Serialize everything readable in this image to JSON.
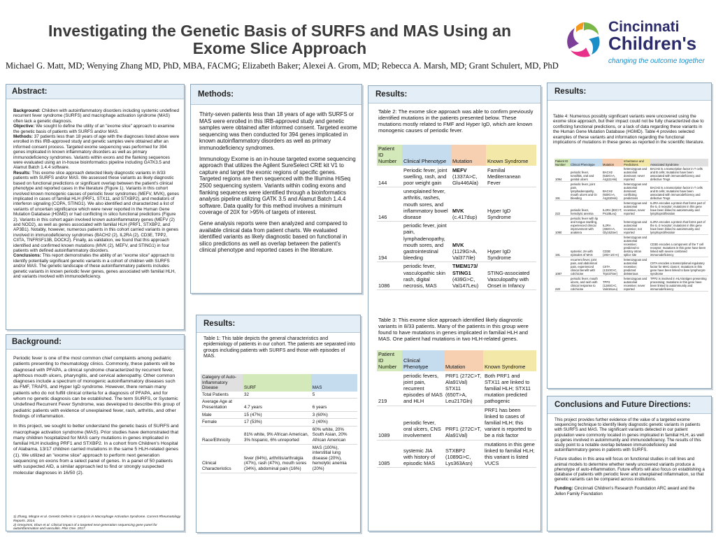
{
  "title": "Investigating the Genetic Basis of SURFS and MAS Using an Exome Slice Approach",
  "authors": "Michael G. Matt, MD; Wenying Zhang MD, PhD, MBA, FACMG; Elizabeth Baker; Alexei A. Grom, MD; Rebecca A. Marsh, MD; Grant Schulert, MD, PhD",
  "logo": {
    "line1": "Cincinnati",
    "line2": "Children's",
    "tagline": "changing the outcome together"
  },
  "abstract": {
    "heading": "Abstract:",
    "background_label": "Background:",
    "background": "Children with autoinflammatory disorders including systemic undefined recurrent fever syndrome (SURFS) and macrophage activation syndrome (MAS) often lack a genetic diagnosis.",
    "objective_label": "Objective:",
    "objective": "We sought to define the utility of an \"exome slice\" approach to examine the genetic basis of patients with SURFS and/or MAS.",
    "methods_label": "Methods:",
    "methods": "37 patients less than 18 years of age with the diagnoses listed above were enrolled in this IRB-approved study and genetic samples were obtained after an informed consent process. Targeted exome sequencing was performed for 394 genes implicated in known inflammatory disorders as well as primary immunodeficiency syndromes. Variants within exons and the flanking sequences were evaluated using an in-house bioinformatics pipeline including GATK3.5 and Alamut Batch 1.4.4 software.",
    "results_label": "Results:",
    "results": "This exome slice approach detected likely diagnostic variants in 8/33 patients with SURFS and/or MAS. We assessed these variants as likely diagnostic based on functional predictions or significant overlap between the patient's clinical phenotype and reported cases in the literature (Figure 1). Variants in this cohort involved known monogenic causes of periodic fever syndromes (MEFV, MVK), genes implicated in cases of familial HLH (PRF1, STX11, and STXBP2), and mediators of interferon signaling (COPA, STING1). We also identified and characterized a list of variants of uncertain significance which were never reported in the Human Gene Mutation Database (HGMD) or had conflicting in silico functional predictions (Figure 2). Variants in this cohort again involved known autoinflammatory genes (MEFV (2) and NOD2), as well as genes associated with familial HLH (PRF1, STXBP2, and AP3B1). Notably, however, numerous patients in this cohort carried variants in genes involved in immunodeficiency syndromes (BACH2 (2), IL2RA (2), CD3E, TPP2, CIITA, TNFRSF13B, DOCK2). Finally, as validation, we found that this approach identified and confirmed known mutations (MVK (2), MEFV, and STING1) in four patients with defined autoinflammatory disorders.",
    "conclusions_label": "Conclusions:",
    "conclusions": "This report demonstrates the ability of an \"exome slice\" approach to identify potentially significant genetic variants in a cohort of children with SURFS and/or MAS. The genetic landscape of these autoinflammatory patients includes genetic variants in known periodic fever genes, genes associated with familial HLH, and variants involved with immunodeficiency."
  },
  "background": {
    "heading": "Background:",
    "p1": "Periodic fever is one of the most common chief complaints among pediatric patients presenting to rheumatology clinics. Commonly, these patients will be diagnosed with PFAPA, a clinical syndrome characterized by recurrent fever, aphthous mouth ulcers, pharyngitis, and cervical adenopathy. Other common diagnoses include a spectrum of monogenic autoinflammatory diseases such as FMF, TRAPS, and Hyper IgD syndrome. However, there remain many patients who do not fulfill clinical criteria for a diagnosis of PFAPA, and for whom no genetic diagnosis can be established. The term SURFS, or Systemic Undefined Recurrent Fever Syndrome, was developed to describe this group of pediatric patients with evidence of unexplained fever, rash, arthritis, and other findings of inflammation.",
    "p2": "In this project, we sought to better understand the genetic basis of SURFS and macrophage activation syndrome (MAS). Prior studies have demonstrated that many children hospitalized for MAS carry mutations in genes implicated in familial HLH including PRF1 and STXBP2. In a cohort from Children's Hospital of Alabama, 13/17 children carried mutations in the same 5 HLH-related genes (1). We utilized an \"exome slice\" approach to perform next generation sequencing on exons from a select panel of genes. In a panel of 50 patients with suspected AID, a similar approach led to find or strongly suspected molecular diagnoses in 16/50 (2).",
    "ref1": "1) Zhang, Mingce et al. Genetic Defects in Cytolysis in Macrophage Activation Syndrome. Current Rheumatology Reports. 2014.",
    "ref2": "2) Omoyinmi, Ebun et al. Clinical impact of a targeted next-generation sequencing gene panel for autoinflammation and vasculitis. Plos One. 2017."
  },
  "methods": {
    "heading": "Methods:",
    "p1": "Thirty-seven patients less than 18 years of age with SURFS or MAS were enrolled in this IRB-approved study and genetic samples were obtained after informed consent. Targeted exome sequencing was then conducted for 394 genes implicated in known autoinflammatory disorders as well as primary immunodeficiency syndromes.",
    "p2": "Immunology Exome is an in-house targeted exome sequencing approach that utilizes the Agilent SureSelect CRE kit V1 to capture and target the exonic regions of specific genes. Targeted regions are then sequenced with the Illumina HiSeq 2500 sequencing system. Variants within coding exons and flanking sequences were identified through a bioinformatics analysis pipeline utilizing GATK 3.5 and Alamut Batch 1.4.4 software. Data quality for this method involves a minimum coverage of 20X for >95% of targets of interest.",
    "p3": "Gene analysis reports were then analyzed and compared to available clinical data from patient charts. We evaluated identified variants as likely diagnostic based on functional in silico predictions as well as overlap between the patient's clinical phenotype and reported cases in the literature."
  },
  "results_table1": {
    "heading": "Results:",
    "caption": "Table 1: This table depicts the general characteristics and epidemiology of patients in our cohort. The patients are separated into groups including patients with SURFS and those with episodes of MAS.",
    "head": [
      "Category of Auto-Inflammatory Disease",
      "SURF",
      "MAS"
    ],
    "rows": [
      [
        "Total Patients",
        "32",
        "5"
      ],
      [
        "Average Age at Presentation",
        "4.7 years",
        "6 years"
      ],
      [
        "Male",
        "15 (47%)",
        "3 (60%)"
      ],
      [
        "Female",
        "17 (53%)",
        "2 (40%)"
      ],
      [
        "Race/Ethnicity",
        "81% white, 9% African American, 3% hispanic, 6% unreported",
        "60% white, 20% South Asian, 20% African American"
      ],
      [
        "Clinical Characteristics",
        "fever (84%), arthritis/arthralgia (47%), rash (47%), mouth sores (34%), abdominal pain (16%)",
        "MAS (100%), interstitial lung disease (20%), hemolytic anemia (20%)"
      ]
    ]
  },
  "results_table2": {
    "heading": "Results:",
    "caption": "Table 2: The exome slice approach was able to confirm previously identified mutations in the patients presented below. These mutations mostly related to FMF and Hyper IgD, which are known monogenic causes of periodic fever.",
    "head": [
      "Patient ID Number",
      "Clinical Phenotype",
      "Mutation",
      "Known Syndrome"
    ],
    "rows": [
      [
        "144",
        "Periodic fever, joint swelling, rash, and poor weight gain",
        "MEFV",
        "(1337A>C, Glu446Ala)",
        "Familial Mediterranean Fever"
      ],
      [
        "146",
        "unexplained fever, arthritis, rashes, mouth sores, and inflammatory bowel disease",
        "MVK",
        "(c.417dup)",
        "Hyper IgD Syndrome"
      ],
      [
        "194",
        "periodic fever, joint pain, lymphadenopathy, mouth sores, and gastrointestinal bleeding",
        "MVK",
        "(1129G>A, Val377Ile)",
        "Hyper IgD Syndrome"
      ],
      [
        "1086",
        "periodic fever, vasculopathic skin rash, digital necrosis, MAS",
        "TMEM173/ STING1",
        "(439G>C, Val147Leu)",
        "STING-associated Vasculopathy with Onset in Infancy"
      ]
    ]
  },
  "results_table3": {
    "caption": "Table 3: This exome slice approach identified likely diagnostic variants in 8/33 patients. Many of the patients in this group were found to have mutations in genes implicated in familial HLH and MAS. One patient had mutations in two HLH-related genes.",
    "head": [
      "Patient ID Number",
      "Clinical Phenotype",
      "Mutation",
      "Known Syndrome"
    ],
    "rows": [
      [
        "219",
        "periodic fevers, joint pain, recurrent episodes of MAS and HLH",
        "PRF1 (272C>T, Ala91Val) STX11 (650T>A, Leu217Gln)",
        "Both PRF1 and STX11 are linked to familial HLH; STX11 mutation predicted pathogenic"
      ],
      [
        "1089",
        "periodic fever, oral ulcers, CNS involvement",
        "PRF1 (272C>T, Ala91Val)",
        "PRF1 has been linked to cases of familial HLH; this variant is reported to be a risk factor"
      ],
      [
        "1085",
        "systemic JIA with history of episodic MAS",
        "STXBP2 (1089G>C, Lys363Asn)",
        "mutations in this gene linked to familial HLH; this variant is listed VUCS"
      ]
    ]
  },
  "results_table4": {
    "heading": "Results:",
    "caption": "Table 4: Numerous possibly significant variants were uncovered using the exome slice approach, but their impact could not be fully characterized due to conflicting functional predictions, or a lack of data regarding these variants in the Human Gene Mutation Database (HGMD). Table 4 provides selected examples of these variants and information regarding the functional implications of mutations in these genes as reported in the scientific literature.",
    "head": [
      "Patient ID Number",
      "Clinical Phenotype",
      "Mutation",
      "Inheritance and Predictions",
      "Associated Syndrome"
    ],
    "rows": [
      [
        "1094",
        "periodic fever, tonsillitis, oral and genital ulcers",
        "BACH2 (532G>A, Arg111His)",
        "heterozygous and autosomal dominant; never reported",
        "BACH2 is a transcription factor in T cells and B cells; mutations have been associated with immunodeficiency and defective Tregs"
      ],
      [
        "191",
        "periodic fever, joint pain, lymphadenopathy, mouth ulcers and GI bleeding",
        "BACH2 (920G>A, Arg310His)",
        "heterozygous and autosomal dominant; conflicting predictions",
        "BACH2 is a transcription factor in T cells and B cells; mutations have been associated with immunodeficiency and defective Tregs"
      ],
      [
        "222",
        "periodic fever, hemolytic anemia",
        "IL2RA (83C>T, Pro28Leu)",
        "heterozygous and autosomal recessive, never reported",
        "IL2RA encodes a protein that forms part of the IL-2 receptor; mutations in this gene have been linked to autoimmunity and lymphoproliferation"
      ],
      [
        "1090",
        "periodic fever with lip and tongue swelling, experienced clinical improvement with anakinra",
        "IL2RA (484G>A, Gly162Ser)",
        "heterozygous and autosomal recessive; not reported",
        "IL2RA encodes a protein that forms part of the IL-2 receptor; mutations in this gene have been linked to autoimmunity and lymphoproliferation"
      ],
      [
        "191",
        "systemic JIA with episodes of MAS",
        "CD3E (203+1G>A)",
        "heterozygous and autosomal recessive; predicted to destroy intron splice site",
        "CD3E encodes a component of the T cell receptor; mutations in this gene have been linked with severe combined immunodeficiency"
      ],
      [
        "1087",
        "recurrent fever, joint pain, and abdominal pain, experienced clinical benefit with colchicine",
        "CIITA (1310G>C, Trp437Ser)",
        "heterozygous and autosomal recessive; predicted deleterious",
        "CIITA encodes a transcriptional regulatory factor for MHC class II; mutations in this gene have been linked to bare lymphocyte syndrome"
      ],
      [
        "220",
        "periodic fever, mouth ulcers, and rash with clinical response to colchicine",
        "TPP2 (1246G>C, Val416Leu)",
        "heterozygous and autosomal recessive; never reported",
        "TPP2 is involved in HLA/antigen presenting processing; mutations in this gene have been linked to autoimmunity and immunodeficiency"
      ]
    ]
  },
  "conclusions": {
    "heading": "Conclusions and Future Directions:",
    "p1": "This project provides further evidence of the value of a targeted exome sequencing technique to identify likely diagnostic genetic variants in patients with SURFS and MAS. The significant variants detected in our patient population were commonly located in genes implicated in familial HLH, as well as genes involved in autoimmunity and immunodeficiency. The results of this study point to a notable overlap between immunodeficiency and autoinflammatory genes in patients with SURFS.",
    "p2": "Future studies in this area will focus on functional studies in cell lines and animal models to determine whether newly uncovered variants produce a phenotype of auto-inflammation. Future efforts will also focus on establishing a database of patients with periodic fever and unexplained inflammation, so that genetic variants can be compared across institutions.",
    "funding_label": "Funding:",
    "funding": "Cincinnati Children's Research Foundation ARC award and the Jellen Family Foundation"
  },
  "colors": {
    "header_bg": "#e4eef6",
    "border": "#8fa6b8",
    "blue": "#c5dcef",
    "green": "#d4e9b9",
    "orange": "#f6d0b0",
    "yellow": "#f4e8a8"
  }
}
